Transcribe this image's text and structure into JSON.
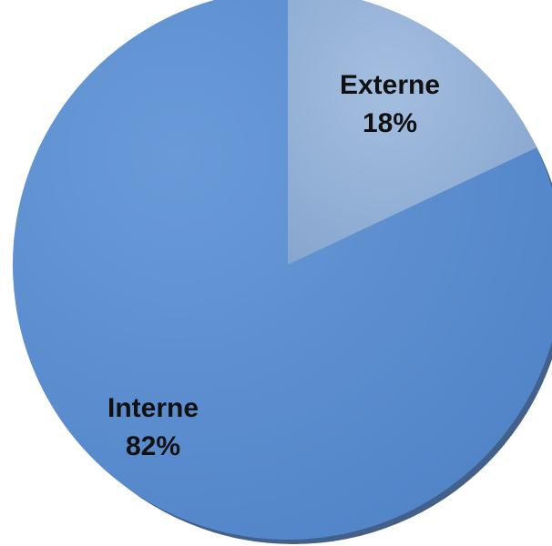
{
  "chart_data": {
    "type": "pie",
    "categories": [
      "Externe",
      "Interne"
    ],
    "values": [
      18,
      82
    ],
    "data_labels": [
      "18%",
      "82%"
    ],
    "colors": [
      "#93afd3",
      "#5c8fd0"
    ],
    "shadow_color": "#2e4f7c",
    "start_angle_deg": 0,
    "direction": "clockwise",
    "legend": "none",
    "title": ""
  }
}
